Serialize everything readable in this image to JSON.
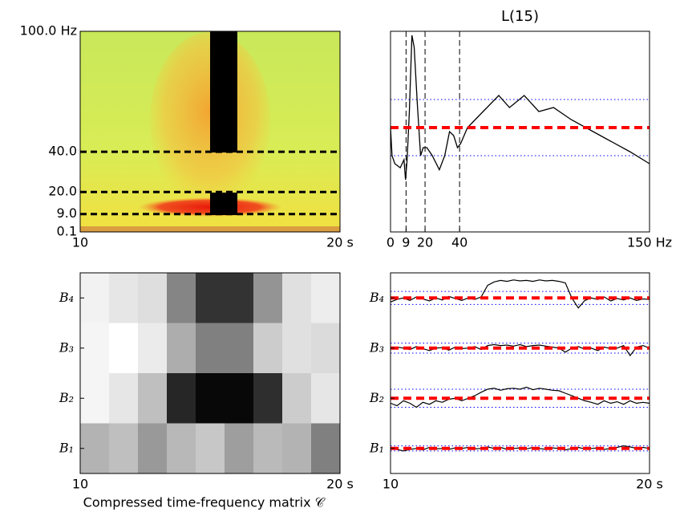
{
  "chart_data": [
    {
      "type": "spectrogram",
      "xlim": [
        10,
        20
      ],
      "xticks": [
        10,
        {
          "value": 20,
          "label": "20 s"
        }
      ],
      "ylim": [
        0.1,
        100
      ],
      "yticks": [
        {
          "value": 100,
          "label": "100.0 Hz"
        },
        {
          "value": 40,
          "label": "40.0"
        },
        {
          "value": 20,
          "label": "20.0"
        },
        {
          "value": 9,
          "label": "9.0"
        },
        0.1
      ],
      "hlines": [
        40,
        20,
        9
      ]
    },
    {
      "type": "line",
      "title": "L(15)",
      "x": [
        0,
        0.9,
        2.5,
        5.6,
        7.8,
        8.7,
        9.6,
        10.9,
        12.4,
        13.7,
        15.5,
        17.4,
        18.9,
        21.1,
        24.2,
        28.3,
        31.4,
        34.2,
        36.6,
        38.8,
        40.6,
        44.6,
        53.6,
        62.7,
        68.9,
        77.4,
        85.9,
        94.4,
        104.6,
        121.6,
        138.6,
        150
      ],
      "series": [
        {
          "color": "#000000",
          "values": [
            0.52,
            0.38,
            0.34,
            0.32,
            0.36,
            0.26,
            0.36,
            0.6,
            0.98,
            0.92,
            0.64,
            0.38,
            0.42,
            0.42,
            0.38,
            0.31,
            0.38,
            0.5,
            0.48,
            0.42,
            0.44,
            0.52,
            0.6,
            0.68,
            0.62,
            0.68,
            0.6,
            0.62,
            0.56,
            0.48,
            0.4,
            0.34
          ]
        }
      ],
      "xlim": [
        0,
        150
      ],
      "xticks": [
        0,
        9,
        20,
        40,
        {
          "value": 150,
          "label": "150 Hz"
        }
      ],
      "ylim": [
        0,
        1
      ],
      "vlines": [
        9,
        20,
        40
      ],
      "threshold": 0.52,
      "band": [
        0.38,
        0.66
      ],
      "threshold_color": "#ff0000",
      "band_color": "#0000ff"
    },
    {
      "type": "matrix",
      "xlim": [
        10,
        20
      ],
      "xticks": [
        10,
        {
          "value": 20,
          "label": "20 s"
        }
      ],
      "xlabel": "Compressed time-frequency matrix 𝒞",
      "rows": [
        "B₄",
        "B₃",
        "B₂",
        "B₁"
      ],
      "values": [
        [
          0.95,
          0.9,
          0.87,
          0.52,
          0.2,
          0.2,
          0.58,
          0.88,
          0.93
        ],
        [
          0.96,
          1.0,
          0.92,
          0.68,
          0.5,
          0.5,
          0.8,
          0.88,
          0.86
        ],
        [
          0.96,
          0.9,
          0.75,
          0.15,
          0.03,
          0.03,
          0.18,
          0.8,
          0.9
        ],
        [
          0.7,
          0.75,
          0.6,
          0.72,
          0.78,
          0.62,
          0.73,
          0.7,
          0.5
        ]
      ]
    },
    {
      "type": "multiline",
      "xlim": [
        10,
        20
      ],
      "xticks": [
        10,
        {
          "value": 20,
          "label": "20 s"
        }
      ],
      "ylim": [
        0,
        4
      ],
      "threshold_color": "#ff0000",
      "band_color": "#0000ff",
      "x": [
        10,
        10.25,
        10.5,
        10.75,
        11,
        11.25,
        11.5,
        11.75,
        12,
        12.25,
        12.5,
        12.75,
        13,
        13.25,
        13.5,
        13.75,
        14,
        14.25,
        14.5,
        14.75,
        15,
        15.25,
        15.5,
        15.75,
        16,
        16.25,
        16.5,
        16.75,
        17,
        17.25,
        17.5,
        17.75,
        18,
        18.25,
        18.5,
        18.75,
        19,
        19.25,
        19.5,
        19.75,
        20
      ],
      "series": [
        {
          "name": "B₄",
          "color": "#000000",
          "threshold": 3.5,
          "band": [
            3.37,
            3.63
          ],
          "values": [
            3.42,
            3.47,
            3.5,
            3.45,
            3.52,
            3.48,
            3.44,
            3.5,
            3.46,
            3.53,
            3.49,
            3.45,
            3.5,
            3.47,
            3.52,
            3.75,
            3.82,
            3.85,
            3.83,
            3.86,
            3.84,
            3.85,
            3.83,
            3.86,
            3.84,
            3.85,
            3.83,
            3.8,
            3.5,
            3.3,
            3.45,
            3.5,
            3.47,
            3.52,
            3.44,
            3.49,
            3.46,
            3.5,
            3.45,
            3.48,
            3.47
          ]
        },
        {
          "name": "B₃",
          "color": "#000000",
          "threshold": 2.5,
          "band": [
            2.4,
            2.6
          ],
          "values": [
            2.48,
            2.52,
            2.5,
            2.47,
            2.53,
            2.49,
            2.45,
            2.5,
            2.51,
            2.46,
            2.52,
            2.49,
            2.5,
            2.53,
            2.47,
            2.55,
            2.57,
            2.55,
            2.56,
            2.54,
            2.57,
            2.53,
            2.55,
            2.56,
            2.54,
            2.52,
            2.5,
            2.42,
            2.5,
            2.53,
            2.48,
            2.5,
            2.45,
            2.52,
            2.49,
            2.5,
            2.55,
            2.35,
            2.52,
            2.55,
            2.5
          ]
        },
        {
          "name": "B₂",
          "color": "#000000",
          "threshold": 1.5,
          "band": [
            1.32,
            1.68
          ],
          "values": [
            1.4,
            1.35,
            1.45,
            1.4,
            1.32,
            1.42,
            1.38,
            1.45,
            1.42,
            1.48,
            1.5,
            1.45,
            1.5,
            1.55,
            1.62,
            1.68,
            1.7,
            1.66,
            1.69,
            1.7,
            1.68,
            1.72,
            1.67,
            1.7,
            1.68,
            1.66,
            1.65,
            1.6,
            1.55,
            1.5,
            1.45,
            1.42,
            1.38,
            1.45,
            1.4,
            1.43,
            1.38,
            1.45,
            1.4,
            1.42,
            1.4
          ]
        },
        {
          "name": "B₁",
          "color": "#000000",
          "threshold": 0.5,
          "band": [
            0.45,
            0.55
          ],
          "values": [
            0.5,
            0.48,
            0.45,
            0.48,
            0.5,
            0.47,
            0.52,
            0.49,
            0.5,
            0.48,
            0.51,
            0.5,
            0.52,
            0.49,
            0.5,
            0.53,
            0.5,
            0.52,
            0.48,
            0.5,
            0.51,
            0.49,
            0.52,
            0.5,
            0.48,
            0.51,
            0.5,
            0.47,
            0.5,
            0.52,
            0.49,
            0.5,
            0.51,
            0.48,
            0.5,
            0.52,
            0.55,
            0.53,
            0.5,
            0.52,
            0.5
          ]
        }
      ]
    }
  ]
}
